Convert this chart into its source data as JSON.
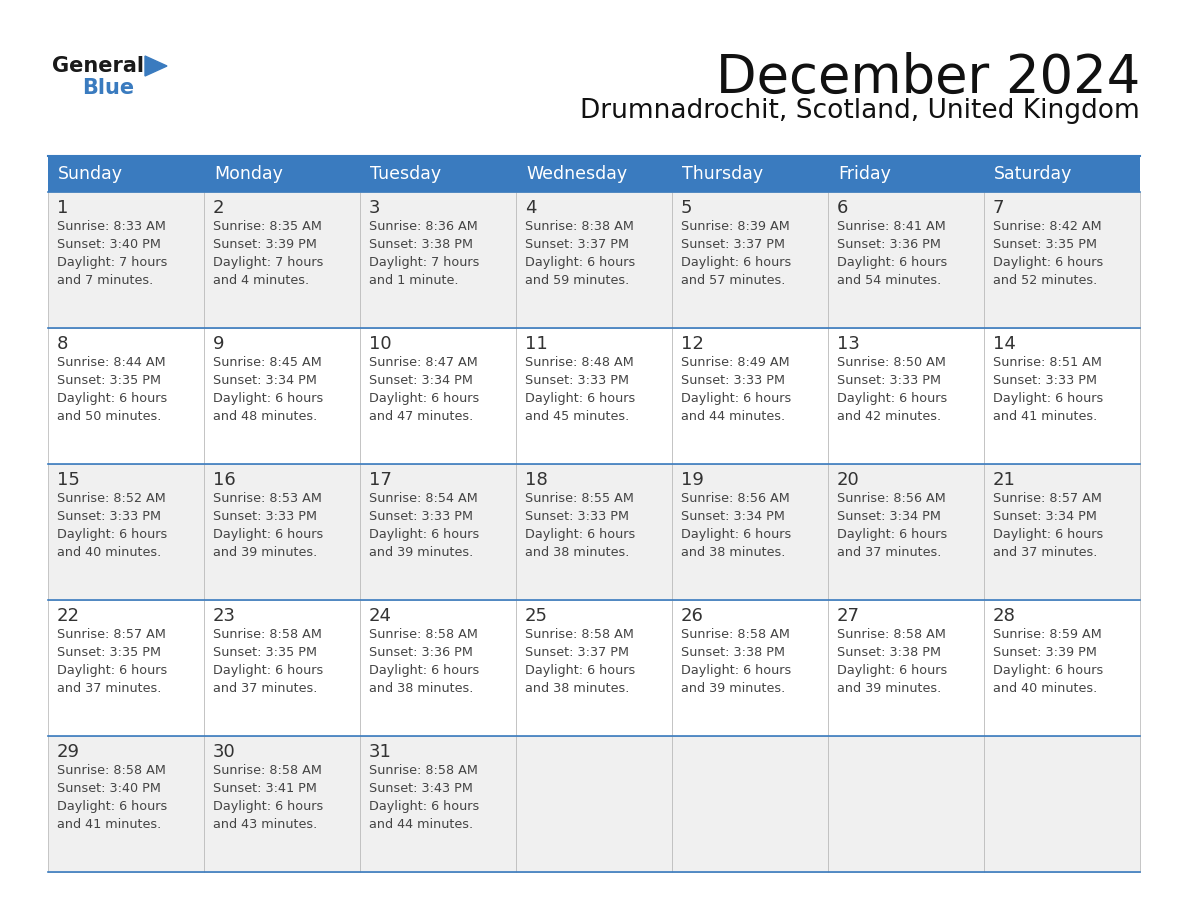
{
  "title": "December 2024",
  "subtitle": "Drumnadrochit, Scotland, United Kingdom",
  "days_of_week": [
    "Sunday",
    "Monday",
    "Tuesday",
    "Wednesday",
    "Thursday",
    "Friday",
    "Saturday"
  ],
  "header_bg": "#3a7bbf",
  "header_text": "#ffffff",
  "row_bg_1": "#f0f0f0",
  "row_bg_2": "#ffffff",
  "border_color": "#3a7bbf",
  "text_color": "#444444",
  "number_color": "#333333",
  "title_color": "#111111",
  "subtitle_color": "#111111",
  "calendar_data": [
    [
      {
        "day": 1,
        "sunrise": "8:33 AM",
        "sunset": "3:40 PM",
        "daylight": "7 hours\nand 7 minutes."
      },
      {
        "day": 2,
        "sunrise": "8:35 AM",
        "sunset": "3:39 PM",
        "daylight": "7 hours\nand 4 minutes."
      },
      {
        "day": 3,
        "sunrise": "8:36 AM",
        "sunset": "3:38 PM",
        "daylight": "7 hours\nand 1 minute."
      },
      {
        "day": 4,
        "sunrise": "8:38 AM",
        "sunset": "3:37 PM",
        "daylight": "6 hours\nand 59 minutes."
      },
      {
        "day": 5,
        "sunrise": "8:39 AM",
        "sunset": "3:37 PM",
        "daylight": "6 hours\nand 57 minutes."
      },
      {
        "day": 6,
        "sunrise": "8:41 AM",
        "sunset": "3:36 PM",
        "daylight": "6 hours\nand 54 minutes."
      },
      {
        "day": 7,
        "sunrise": "8:42 AM",
        "sunset": "3:35 PM",
        "daylight": "6 hours\nand 52 minutes."
      }
    ],
    [
      {
        "day": 8,
        "sunrise": "8:44 AM",
        "sunset": "3:35 PM",
        "daylight": "6 hours\nand 50 minutes."
      },
      {
        "day": 9,
        "sunrise": "8:45 AM",
        "sunset": "3:34 PM",
        "daylight": "6 hours\nand 48 minutes."
      },
      {
        "day": 10,
        "sunrise": "8:47 AM",
        "sunset": "3:34 PM",
        "daylight": "6 hours\nand 47 minutes."
      },
      {
        "day": 11,
        "sunrise": "8:48 AM",
        "sunset": "3:33 PM",
        "daylight": "6 hours\nand 45 minutes."
      },
      {
        "day": 12,
        "sunrise": "8:49 AM",
        "sunset": "3:33 PM",
        "daylight": "6 hours\nand 44 minutes."
      },
      {
        "day": 13,
        "sunrise": "8:50 AM",
        "sunset": "3:33 PM",
        "daylight": "6 hours\nand 42 minutes."
      },
      {
        "day": 14,
        "sunrise": "8:51 AM",
        "sunset": "3:33 PM",
        "daylight": "6 hours\nand 41 minutes."
      }
    ],
    [
      {
        "day": 15,
        "sunrise": "8:52 AM",
        "sunset": "3:33 PM",
        "daylight": "6 hours\nand 40 minutes."
      },
      {
        "day": 16,
        "sunrise": "8:53 AM",
        "sunset": "3:33 PM",
        "daylight": "6 hours\nand 39 minutes."
      },
      {
        "day": 17,
        "sunrise": "8:54 AM",
        "sunset": "3:33 PM",
        "daylight": "6 hours\nand 39 minutes."
      },
      {
        "day": 18,
        "sunrise": "8:55 AM",
        "sunset": "3:33 PM",
        "daylight": "6 hours\nand 38 minutes."
      },
      {
        "day": 19,
        "sunrise": "8:56 AM",
        "sunset": "3:34 PM",
        "daylight": "6 hours\nand 38 minutes."
      },
      {
        "day": 20,
        "sunrise": "8:56 AM",
        "sunset": "3:34 PM",
        "daylight": "6 hours\nand 37 minutes."
      },
      {
        "day": 21,
        "sunrise": "8:57 AM",
        "sunset": "3:34 PM",
        "daylight": "6 hours\nand 37 minutes."
      }
    ],
    [
      {
        "day": 22,
        "sunrise": "8:57 AM",
        "sunset": "3:35 PM",
        "daylight": "6 hours\nand 37 minutes."
      },
      {
        "day": 23,
        "sunrise": "8:58 AM",
        "sunset": "3:35 PM",
        "daylight": "6 hours\nand 37 minutes."
      },
      {
        "day": 24,
        "sunrise": "8:58 AM",
        "sunset": "3:36 PM",
        "daylight": "6 hours\nand 38 minutes."
      },
      {
        "day": 25,
        "sunrise": "8:58 AM",
        "sunset": "3:37 PM",
        "daylight": "6 hours\nand 38 minutes."
      },
      {
        "day": 26,
        "sunrise": "8:58 AM",
        "sunset": "3:38 PM",
        "daylight": "6 hours\nand 39 minutes."
      },
      {
        "day": 27,
        "sunrise": "8:58 AM",
        "sunset": "3:38 PM",
        "daylight": "6 hours\nand 39 minutes."
      },
      {
        "day": 28,
        "sunrise": "8:59 AM",
        "sunset": "3:39 PM",
        "daylight": "6 hours\nand 40 minutes."
      }
    ],
    [
      {
        "day": 29,
        "sunrise": "8:58 AM",
        "sunset": "3:40 PM",
        "daylight": "6 hours\nand 41 minutes."
      },
      {
        "day": 30,
        "sunrise": "8:58 AM",
        "sunset": "3:41 PM",
        "daylight": "6 hours\nand 43 minutes."
      },
      {
        "day": 31,
        "sunrise": "8:58 AM",
        "sunset": "3:43 PM",
        "daylight": "6 hours\nand 44 minutes."
      },
      null,
      null,
      null,
      null
    ]
  ]
}
